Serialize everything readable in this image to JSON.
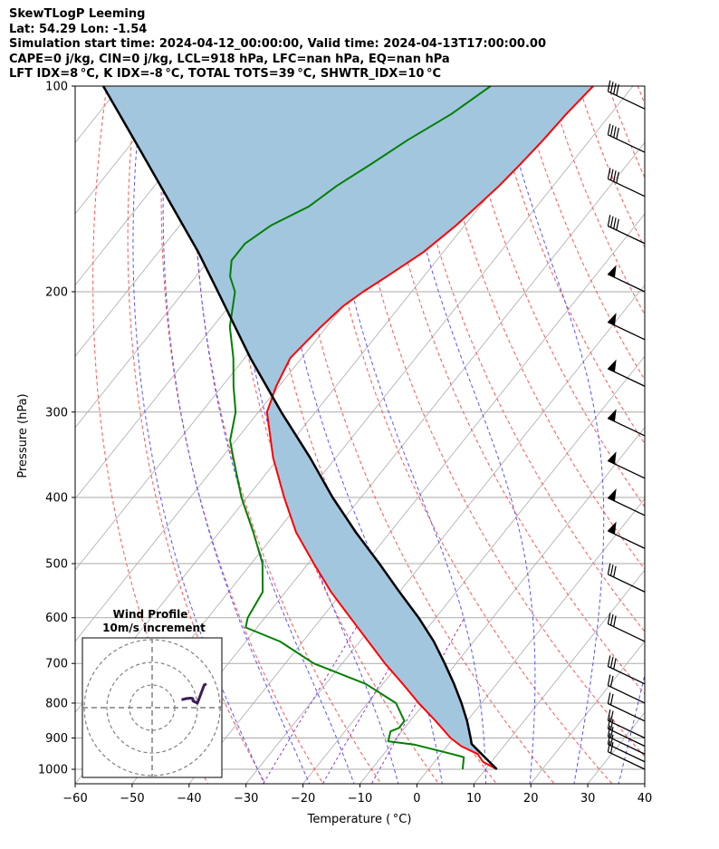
{
  "header": {
    "line1": "SkewTLogP Leeming",
    "line2": "Lat: 54.29   Lon: -1.54",
    "line3": "Simulation start time: 2024-04-12_00:00:00, Valid time: 2024-04-13T17:00:00.00",
    "line4": "CAPE=0 j/kg, CIN=0 j/kg, LCL=918 hPa, LFC=nan hPa, EQ=nan hPa",
    "line5": "LFT IDX=8 °C, K IDX=-8 °C, TOTAL TOTS=39 °C, SHWTR_IDX=10 °C"
  },
  "colors": {
    "temperature": "#ff0000",
    "dewpoint": "#008000",
    "parcel": "#000000",
    "cape_fill": "#a3c6df",
    "dry_adiabat": "#ff5555",
    "moist_adiabat": "#5555ff",
    "isotherm": "#aaaaaa",
    "isobar": "#aaaaaa",
    "mixing_ratio": "#9933cc",
    "hodograph": "#3b1c5a"
  },
  "chart_data": {
    "type": "line",
    "title": "SkewTLogP Leeming",
    "xlabel": "Temperature ( °C)",
    "ylabel": "Pressure (hPa)",
    "xlim": [
      -60,
      40
    ],
    "ylim": [
      1050,
      100
    ],
    "x_ticks": [
      -60,
      -50,
      -40,
      -30,
      -20,
      -10,
      0,
      10,
      20,
      30,
      40
    ],
    "y_ticks": [
      1000,
      900,
      800,
      700,
      600,
      500,
      400,
      300,
      200,
      100
    ],
    "series": [
      {
        "name": "Temperature",
        "p": [
          1000,
          975,
          950,
          925,
          900,
          850,
          800,
          750,
          700,
          650,
          600,
          550,
          500,
          450,
          400,
          350,
          300,
          275,
          250,
          225,
          210,
          200,
          190,
          175,
          160,
          150,
          140,
          130,
          120,
          110,
          100
        ],
        "t": [
          12,
          8.5,
          6.5,
          2.5,
          -0.5,
          -5.5,
          -11,
          -16.5,
          -22.5,
          -28.5,
          -35,
          -42,
          -49,
          -56.5,
          -63.5,
          -71,
          -78.5,
          -80.5,
          -82,
          -81,
          -80,
          -78.5,
          -76.5,
          -73.5,
          -71.5,
          -70.5,
          -69.5,
          -68.8,
          -68.2,
          -67.8,
          -67
        ]
      },
      {
        "name": "Dewpoint",
        "p": [
          1000,
          960,
          950,
          920,
          910,
          880,
          870,
          850,
          800,
          750,
          700,
          650,
          620,
          600,
          550,
          500,
          450,
          400,
          350,
          330,
          300,
          275,
          250,
          225,
          200,
          190,
          180,
          170,
          160,
          150,
          140,
          130,
          120,
          110,
          100
        ],
        "t": [
          6,
          4.5,
          2,
          -6,
          -11,
          -12,
          -11,
          -11,
          -15,
          -23,
          -35,
          -44,
          -52,
          -53,
          -54,
          -58,
          -64,
          -71,
          -78,
          -81,
          -84,
          -88,
          -92,
          -97,
          -101,
          -104,
          -106,
          -106,
          -104,
          -100,
          -98,
          -95,
          -92,
          -88,
          -85
        ]
      },
      {
        "name": "Parcel",
        "p": [
          1000,
          950,
          918,
          900,
          850,
          800,
          750,
          700,
          650,
          600,
          550,
          500,
          450,
          400,
          350,
          300,
          250,
          200,
          175,
          150,
          125,
          100
        ],
        "t": [
          12,
          7.2,
          4,
          3,
          0,
          -3.5,
          -7.5,
          -12,
          -17,
          -23,
          -30,
          -37.5,
          -46,
          -55,
          -64.5,
          -76,
          -89,
          -104,
          -113,
          -124,
          -137,
          -153
        ]
      }
    ],
    "cape_shading": "between parcel and temperature",
    "wind_barbs": [
      {
        "p": 1000,
        "speed_kt": 20,
        "dir_deg": 250
      },
      {
        "p": 975,
        "speed_kt": 20,
        "dir_deg": 250
      },
      {
        "p": 950,
        "speed_kt": 20,
        "dir_deg": 250
      },
      {
        "p": 925,
        "speed_kt": 20,
        "dir_deg": 250
      },
      {
        "p": 900,
        "speed_kt": 20,
        "dir_deg": 250
      },
      {
        "p": 850,
        "speed_kt": 20,
        "dir_deg": 250
      },
      {
        "p": 800,
        "speed_kt": 20,
        "dir_deg": 250
      },
      {
        "p": 750,
        "speed_kt": 30,
        "dir_deg": 250
      },
      {
        "p": 650,
        "speed_kt": 30,
        "dir_deg": 250
      },
      {
        "p": 550,
        "speed_kt": 30,
        "dir_deg": 250
      },
      {
        "p": 475,
        "speed_kt": 50,
        "dir_deg": 250
      },
      {
        "p": 425,
        "speed_kt": 50,
        "dir_deg": 250
      },
      {
        "p": 375,
        "speed_kt": 50,
        "dir_deg": 250
      },
      {
        "p": 325,
        "speed_kt": 50,
        "dir_deg": 250
      },
      {
        "p": 275,
        "speed_kt": 50,
        "dir_deg": 250
      },
      {
        "p": 235,
        "speed_kt": 50,
        "dir_deg": 250
      },
      {
        "p": 200,
        "speed_kt": 50,
        "dir_deg": 250
      },
      {
        "p": 170,
        "speed_kt": 40,
        "dir_deg": 250
      },
      {
        "p": 145,
        "speed_kt": 40,
        "dir_deg": 250
      },
      {
        "p": 125,
        "speed_kt": 40,
        "dir_deg": 250
      },
      {
        "p": 108,
        "speed_kt": 40,
        "dir_deg": 250
      }
    ],
    "hodograph": {
      "title": "Wind Profile",
      "subtitle": "10m/s increment",
      "rings_ms": [
        10,
        20,
        30
      ],
      "u": [
        13,
        15,
        17,
        18,
        18,
        20,
        23,
        24
      ],
      "v": [
        3.5,
        4,
        4.2,
        4,
        3,
        2,
        10,
        10.5
      ]
    }
  }
}
